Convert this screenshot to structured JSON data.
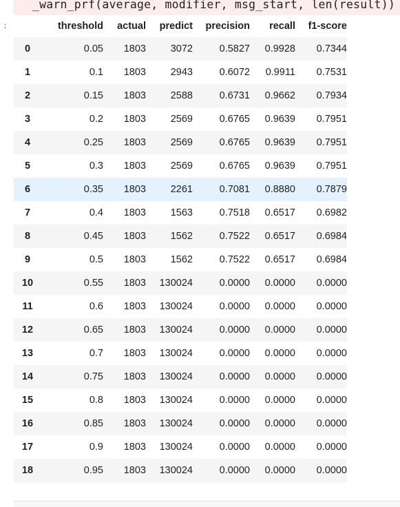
{
  "warning": {
    "code_line": "_warn_prf(average, modifier, msg_start, len(result))"
  },
  "prompt": ":",
  "table": {
    "columns": [
      "",
      "threshold",
      "actual",
      "predict",
      "precision",
      "recall",
      "f1-score"
    ],
    "rows": [
      [
        "0",
        "0.05",
        "1803",
        "3072",
        "0.5827",
        "0.9928",
        "0.7344"
      ],
      [
        "1",
        "0.1",
        "1803",
        "2943",
        "0.6072",
        "0.9911",
        "0.7531"
      ],
      [
        "2",
        "0.15",
        "1803",
        "2588",
        "0.6731",
        "0.9662",
        "0.7934"
      ],
      [
        "3",
        "0.2",
        "1803",
        "2569",
        "0.6765",
        "0.9639",
        "0.7951"
      ],
      [
        "4",
        "0.25",
        "1803",
        "2569",
        "0.6765",
        "0.9639",
        "0.7951"
      ],
      [
        "5",
        "0.3",
        "1803",
        "2569",
        "0.6765",
        "0.9639",
        "0.7951"
      ],
      [
        "6",
        "0.35",
        "1803",
        "2261",
        "0.7081",
        "0.8880",
        "0.7879"
      ],
      [
        "7",
        "0.4",
        "1803",
        "1563",
        "0.7518",
        "0.6517",
        "0.6982"
      ],
      [
        "8",
        "0.45",
        "1803",
        "1562",
        "0.7522",
        "0.6517",
        "0.6984"
      ],
      [
        "9",
        "0.5",
        "1803",
        "1562",
        "0.7522",
        "0.6517",
        "0.6984"
      ],
      [
        "10",
        "0.55",
        "1803",
        "130024",
        "0.0000",
        "0.0000",
        "0.0000"
      ],
      [
        "11",
        "0.6",
        "1803",
        "130024",
        "0.0000",
        "0.0000",
        "0.0000"
      ],
      [
        "12",
        "0.65",
        "1803",
        "130024",
        "0.0000",
        "0.0000",
        "0.0000"
      ],
      [
        "13",
        "0.7",
        "1803",
        "130024",
        "0.0000",
        "0.0000",
        "0.0000"
      ],
      [
        "14",
        "0.75",
        "1803",
        "130024",
        "0.0000",
        "0.0000",
        "0.0000"
      ],
      [
        "15",
        "0.8",
        "1803",
        "130024",
        "0.0000",
        "0.0000",
        "0.0000"
      ],
      [
        "16",
        "0.85",
        "1803",
        "130024",
        "0.0000",
        "0.0000",
        "0.0000"
      ],
      [
        "17",
        "0.9",
        "1803",
        "130024",
        "0.0000",
        "0.0000",
        "0.0000"
      ],
      [
        "18",
        "0.95",
        "1803",
        "130024",
        "0.0000",
        "0.0000",
        "0.0000"
      ]
    ],
    "highlighted_row": 6
  },
  "colors": {
    "warning_bg": "#fdecec",
    "row_stripe": "#f5f5f5",
    "row_highlight": "#e3f2fd"
  }
}
